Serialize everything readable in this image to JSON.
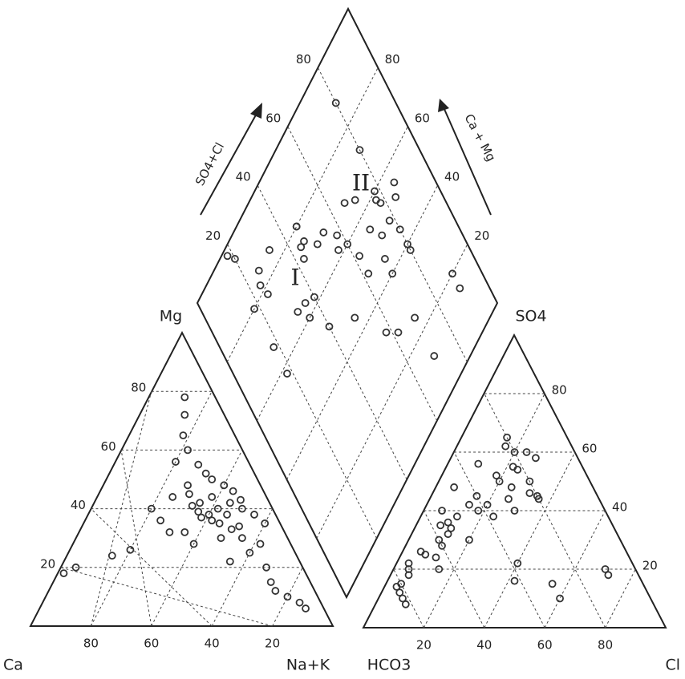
{
  "chart_data": {
    "type": "piper",
    "labels": {
      "ca": "Ca",
      "mg": "Mg",
      "nak": "Na+K",
      "hco3": "HCO3",
      "so4": "SO4",
      "cl": "Cl",
      "so4cl": "SO4+Cl",
      "camg": "Ca + Mg"
    },
    "zones": [
      "I",
      "II"
    ],
    "cation_ticks": {
      "Mg": [
        20,
        40,
        60,
        80
      ],
      "Ca": [
        80,
        60,
        40,
        20
      ]
    },
    "anion_ticks": {
      "SO4": [
        20,
        40,
        60,
        80
      ],
      "Cl": [
        20,
        40,
        60,
        80
      ]
    },
    "diamond_ticks": {
      "SO4+Cl": [
        20,
        40,
        60,
        80
      ],
      "Ca + Mg": [
        20,
        40,
        60,
        80
      ]
    },
    "points": [
      {
        "Mg": 38,
        "Na+K": 40,
        "SO4": 45,
        "Cl": 15
      },
      {
        "Mg": 42,
        "Na+K": 35,
        "SO4": 40,
        "Cl": 18
      },
      {
        "Mg": 35,
        "Na+K": 45,
        "SO4": 50,
        "Cl": 20
      },
      {
        "Mg": 40,
        "Na+K": 42,
        "SO4": 55,
        "Cl": 22
      },
      {
        "Mg": 45,
        "Na+K": 30,
        "SO4": 38,
        "Cl": 12
      },
      {
        "Mg": 33,
        "Na+K": 50,
        "SO4": 48,
        "Cl": 25
      },
      {
        "Mg": 37,
        "Na+K": 38,
        "SO4": 30,
        "Cl": 10
      },
      {
        "Mg": 44,
        "Na+K": 38,
        "SO4": 42,
        "Cl": 14
      },
      {
        "Mg": 48,
        "Na+K": 28,
        "SO4": 35,
        "Cl": 8
      },
      {
        "Mg": 30,
        "Na+K": 48,
        "SO4": 28,
        "Cl": 12
      },
      {
        "Mg": 55,
        "Na+K": 28,
        "SO4": 60,
        "Cl": 20
      },
      {
        "Mg": 60,
        "Na+K": 22,
        "SO4": 20,
        "Cl": 5
      },
      {
        "Mg": 65,
        "Na+K": 18,
        "SO4": 18,
        "Cl": 6
      },
      {
        "Mg": 72,
        "Na+K": 15,
        "SO4": 25,
        "Cl": 8
      },
      {
        "Mg": 78,
        "Na+K": 12,
        "SO4": 65,
        "Cl": 15
      },
      {
        "Mg": 20,
        "Na+K": 5,
        "SO4": 15,
        "Cl": 5
      },
      {
        "Mg": 18,
        "Na+K": 2,
        "SO4": 12,
        "Cl": 6
      },
      {
        "Mg": 24,
        "Na+K": 15,
        "SO4": 22,
        "Cl": 4
      },
      {
        "Mg": 26,
        "Na+K": 20,
        "SO4": 10,
        "Cl": 8
      },
      {
        "Mg": 36,
        "Na+K": 25,
        "SO4": 32,
        "Cl": 12
      },
      {
        "Mg": 40,
        "Na+K": 20,
        "SO4": 36,
        "Cl": 10
      },
      {
        "Mg": 42,
        "Na+K": 45,
        "SO4": 58,
        "Cl": 28
      },
      {
        "Mg": 38,
        "Na+K": 55,
        "SO4": 50,
        "Cl": 30
      },
      {
        "Mg": 35,
        "Na+K": 60,
        "SO4": 45,
        "Cl": 35
      },
      {
        "Mg": 25,
        "Na+K": 60,
        "SO4": 40,
        "Cl": 30
      },
      {
        "Mg": 30,
        "Na+K": 55,
        "SO4": 52,
        "Cl": 18
      },
      {
        "Mg": 10,
        "Na+K": 80,
        "SO4": 20,
        "Cl": 70
      },
      {
        "Mg": 8,
        "Na+K": 85,
        "SO4": 18,
        "Cl": 72
      },
      {
        "Mg": 6,
        "Na+K": 88,
        "SO4": 10,
        "Cl": 60
      },
      {
        "Mg": 12,
        "Na+K": 75,
        "SO4": 15,
        "Cl": 55
      },
      {
        "Mg": 15,
        "Na+K": 72,
        "SO4": 22,
        "Cl": 40
      },
      {
        "Mg": 48,
        "Na+K": 40,
        "SO4": 62,
        "Cl": 16
      },
      {
        "Mg": 50,
        "Na+K": 35,
        "SO4": 44,
        "Cl": 26
      },
      {
        "Mg": 22,
        "Na+K": 55,
        "SO4": 30,
        "Cl": 20
      },
      {
        "Mg": 32,
        "Na+K": 35,
        "SO4": 26,
        "Cl": 6
      },
      {
        "Mg": 44,
        "Na+K": 25,
        "SO4": 40,
        "Cl": 6
      },
      {
        "Mg": 28,
        "Na+K": 40,
        "SO4": 20,
        "Cl": 15
      },
      {
        "Mg": 34,
        "Na+K": 52,
        "SO4": 38,
        "Cl": 24
      },
      {
        "Mg": 46,
        "Na+K": 44,
        "SO4": 54,
        "Cl": 24
      },
      {
        "Mg": 40,
        "Na+K": 50,
        "SO4": 46,
        "Cl": 32
      },
      {
        "Mg": 56,
        "Na+K": 20,
        "SO4": 34,
        "Cl": 12
      },
      {
        "Mg": 36,
        "Na+K": 42,
        "SO4": 8,
        "Cl": 10
      },
      {
        "Mg": 41,
        "Na+K": 33,
        "SO4": 14,
        "Cl": 4
      },
      {
        "Mg": 32,
        "Na+K": 30,
        "SO4": 48,
        "Cl": 6
      },
      {
        "Mg": 52,
        "Na+K": 32,
        "SO4": 56,
        "Cl": 10
      },
      {
        "Mg": 38,
        "Na+K": 46,
        "SO4": 42,
        "Cl": 20
      },
      {
        "Mg": 43,
        "Na+K": 48,
        "SO4": 60,
        "Cl": 24
      },
      {
        "Mg": 28,
        "Na+K": 62,
        "SO4": 44,
        "Cl": 36
      },
      {
        "Mg": 20,
        "Na+K": 68,
        "SO4": 16,
        "Cl": 42
      },
      {
        "Mg": 39,
        "Na+K": 36,
        "SO4": 24,
        "Cl": 12
      }
    ]
  }
}
